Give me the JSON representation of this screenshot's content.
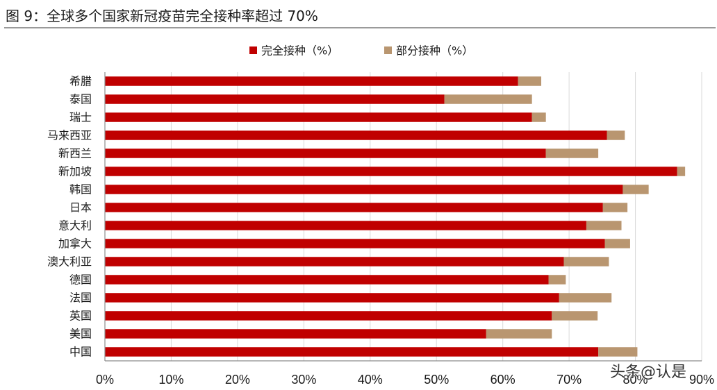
{
  "title": "图 9：全球多个国家新冠疫苗完全接种率超过 70%",
  "watermark": "头条@认是",
  "chart_data": {
    "type": "bar",
    "orientation": "horizontal",
    "stacked": true,
    "title": "",
    "xlabel": "",
    "ylabel": "",
    "categories": [
      "希腊",
      "泰国",
      "瑞士",
      "马来西亚",
      "新西兰",
      "新加坡",
      "韩国",
      "日本",
      "意大利",
      "加拿大",
      "澳大利亚",
      "德国",
      "法国",
      "英国",
      "美国",
      "中国"
    ],
    "series": [
      {
        "name": "完全接种（%）",
        "color": "#C00000",
        "values": [
          62.3,
          51.2,
          64.4,
          75.7,
          66.5,
          86.3,
          78.1,
          75.1,
          72.6,
          75.4,
          69.2,
          66.9,
          68.5,
          67.4,
          57.5,
          74.4
        ]
      },
      {
        "name": "部分接种（%）",
        "color": "#B99670",
        "values": [
          3.5,
          13.2,
          2.1,
          2.7,
          7.9,
          1.2,
          3.9,
          3.7,
          5.3,
          3.8,
          6.8,
          2.6,
          7.9,
          6.9,
          9.9,
          5.9
        ]
      }
    ],
    "xlim": [
      0,
      90
    ],
    "xticks": [
      0,
      10,
      20,
      30,
      40,
      50,
      60,
      70,
      80,
      90
    ],
    "tick_suffix": "%",
    "grid": true,
    "legend_position": "top-center"
  }
}
